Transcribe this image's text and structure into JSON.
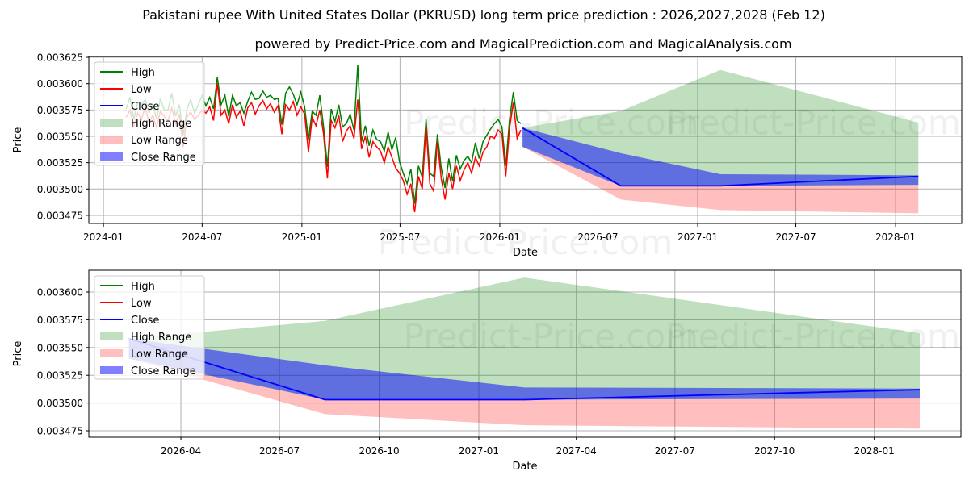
{
  "chart_data": {
    "type": "line",
    "title": "Pakistani rupee With United States Dollar (PKRUSD) long term price prediction : 2026,2027,2028 (Feb 12)",
    "subtitle": "powered by Predict-Price.com and MagicalPrediction.com and MagicalAnalysis.com",
    "watermark": "Predict-Price.com",
    "xlabel": "Date",
    "ylabel": "Price",
    "legend": {
      "placement": "upper-left",
      "entries": [
        "High",
        "Low",
        "Close",
        "High Range",
        "Low Range",
        "Close Range"
      ]
    },
    "colors": {
      "high": "#008000",
      "low": "#ff0000",
      "close": "#0000ff"
    },
    "history": {
      "start": "2024-02-12",
      "step_days": 7,
      "high": [
        0.003576,
        0.003587,
        0.003566,
        0.003582,
        0.00358,
        0.003585,
        0.003572,
        0.003581,
        0.003566,
        0.003586,
        0.003575,
        0.003575,
        0.003591,
        0.003569,
        0.00358,
        0.003551,
        0.003576,
        0.003585,
        0.003572,
        0.00358,
        0.003589,
        0.003579,
        0.003587,
        0.003576,
        0.003606,
        0.00358,
        0.003589,
        0.003569,
        0.003589,
        0.003579,
        0.003582,
        0.003572,
        0.003583,
        0.003592,
        0.003585,
        0.003586,
        0.003593,
        0.003587,
        0.003589,
        0.003585,
        0.003586,
        0.003561,
        0.003591,
        0.003597,
        0.00359,
        0.00358,
        0.003592,
        0.003578,
        0.003547,
        0.003574,
        0.00357,
        0.003589,
        0.003559,
        0.003521,
        0.003576,
        0.003564,
        0.00358,
        0.003559,
        0.003562,
        0.003571,
        0.003556,
        0.003618,
        0.003545,
        0.00356,
        0.003541,
        0.003556,
        0.003547,
        0.003545,
        0.003536,
        0.003554,
        0.003537,
        0.003549,
        0.003526,
        0.003515,
        0.003505,
        0.003519,
        0.003486,
        0.003522,
        0.003511,
        0.003566,
        0.003515,
        0.003512,
        0.003552,
        0.00352,
        0.003501,
        0.003529,
        0.003507,
        0.003532,
        0.003519,
        0.003527,
        0.003531,
        0.003525,
        0.003544,
        0.003529,
        0.003545,
        0.003551,
        0.003557,
        0.003562,
        0.003566,
        0.003559,
        0.003522,
        0.003566,
        0.003592,
        0.003565,
        0.003562
      ],
      "low": [
        0.003568,
        0.003575,
        0.00356,
        0.003572,
        0.003566,
        0.003578,
        0.003563,
        0.00357,
        0.003558,
        0.003574,
        0.003569,
        0.003565,
        0.003577,
        0.003562,
        0.003571,
        0.00354,
        0.003568,
        0.003573,
        0.003566,
        0.00357,
        0.003575,
        0.003572,
        0.003578,
        0.003565,
        0.0036,
        0.00357,
        0.003575,
        0.003562,
        0.00358,
        0.003568,
        0.003574,
        0.00356,
        0.003577,
        0.003582,
        0.003571,
        0.003579,
        0.003584,
        0.003576,
        0.003581,
        0.003573,
        0.003579,
        0.003552,
        0.00358,
        0.003575,
        0.003583,
        0.00357,
        0.003578,
        0.003571,
        0.003535,
        0.003568,
        0.00356,
        0.003575,
        0.003552,
        0.00351,
        0.003565,
        0.003558,
        0.00357,
        0.003545,
        0.003555,
        0.00356,
        0.003548,
        0.003585,
        0.003538,
        0.00355,
        0.00353,
        0.003545,
        0.00354,
        0.003536,
        0.003525,
        0.00354,
        0.00353,
        0.00352,
        0.003515,
        0.003508,
        0.003495,
        0.003505,
        0.003478,
        0.003512,
        0.0035,
        0.00356,
        0.003505,
        0.003498,
        0.003545,
        0.00351,
        0.00349,
        0.003515,
        0.0035,
        0.003522,
        0.003508,
        0.003518,
        0.003525,
        0.003515,
        0.00353,
        0.003522,
        0.003535,
        0.00354,
        0.00355,
        0.003548,
        0.003556,
        0.003552,
        0.003512,
        0.003558,
        0.003582,
        0.003548,
        0.003556
      ]
    },
    "forecast": {
      "dates": [
        "2026-02-12",
        "2026-08-12",
        "2027-02-12",
        "2028-02-12"
      ],
      "close": [
        0.003558,
        0.003503,
        0.003503,
        0.003512
      ],
      "high_range_upper": [
        0.003558,
        0.003574,
        0.003613,
        0.003563
      ],
      "close_range_upper": [
        0.003558,
        0.003534,
        0.003514,
        0.003513
      ],
      "close_range_lower": [
        0.00354,
        0.003503,
        0.003503,
        0.003504
      ],
      "low_range_lower": [
        0.00354,
        0.00349,
        0.00348,
        0.003477
      ]
    },
    "panels": [
      {
        "xlim": [
          "2023-12-05",
          "2028-05-02"
        ],
        "ylim": [
          0.0034673,
          0.0036258
        ],
        "xticks": [
          "2024-01",
          "2024-07",
          "2025-01",
          "2025-07",
          "2026-01",
          "2026-07",
          "2027-01",
          "2027-07",
          "2028-01"
        ],
        "yticks": [
          "0.003475",
          "0.003500",
          "0.003525",
          "0.003550",
          "0.003575",
          "0.003600",
          "0.003625"
        ],
        "show_history": true
      },
      {
        "xlim": [
          "2026-01-06",
          "2028-03-21"
        ],
        "ylim": [
          0.0034692,
          0.0036196
        ],
        "xticks": [
          "2026-04",
          "2026-07",
          "2026-10",
          "2027-01",
          "2027-04",
          "2027-07",
          "2027-10",
          "2028-01"
        ],
        "yticks": [
          "0.003475",
          "0.003500",
          "0.003525",
          "0.003550",
          "0.003575",
          "0.003600"
        ],
        "show_history": false
      }
    ]
  }
}
